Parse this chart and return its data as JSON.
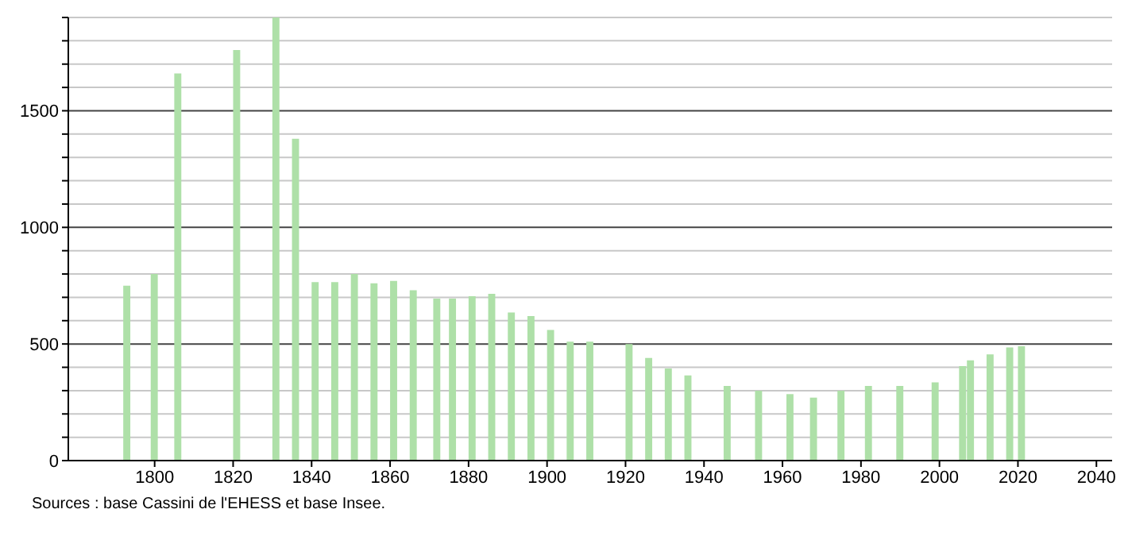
{
  "chart_data": {
    "type": "bar",
    "x": [
      1793,
      1800,
      1806,
      1821,
      1831,
      1836,
      1841,
      1846,
      1851,
      1856,
      1861,
      1866,
      1872,
      1876,
      1881,
      1886,
      1891,
      1896,
      1901,
      1906,
      1911,
      1921,
      1926,
      1931,
      1936,
      1946,
      1954,
      1962,
      1968,
      1975,
      1982,
      1990,
      1999,
      2006,
      2008,
      2013,
      2018,
      2021
    ],
    "values": [
      750,
      800,
      1660,
      1760,
      1900,
      1380,
      765,
      765,
      800,
      760,
      770,
      730,
      695,
      695,
      705,
      715,
      635,
      620,
      560,
      510,
      510,
      500,
      440,
      395,
      365,
      320,
      300,
      285,
      270,
      300,
      320,
      320,
      335,
      405,
      430,
      455,
      485,
      490
    ],
    "color": "#aee0a8",
    "xlim": [
      1778,
      2044
    ],
    "xticks": [
      1800,
      1820,
      1840,
      1860,
      1880,
      1900,
      1920,
      1940,
      1960,
      1980,
      2000,
      2020,
      2040
    ],
    "ylim": [
      0,
      1900
    ],
    "yticks": [
      0,
      {
        "value": 100,
        "label": null
      },
      {
        "value": 200,
        "label": null
      },
      {
        "value": 300,
        "label": null
      },
      {
        "value": 400,
        "label": null
      },
      500,
      {
        "value": 600,
        "label": null
      },
      {
        "value": 700,
        "label": null
      },
      {
        "value": 800,
        "label": null
      },
      {
        "value": 900,
        "label": null
      },
      1000,
      {
        "value": 1100,
        "label": null
      },
      {
        "value": 1200,
        "label": null
      },
      {
        "value": 1300,
        "label": null
      },
      {
        "value": 1400,
        "label": null
      },
      1500,
      {
        "value": 1600,
        "label": null
      },
      {
        "value": 1700,
        "label": null
      },
      {
        "value": 1800,
        "label": null
      },
      {
        "value": 1900,
        "label": null
      }
    ],
    "grid": "y",
    "annotations": [
      "Sources : base Cassini de l'EHESS et base Insee."
    ]
  }
}
